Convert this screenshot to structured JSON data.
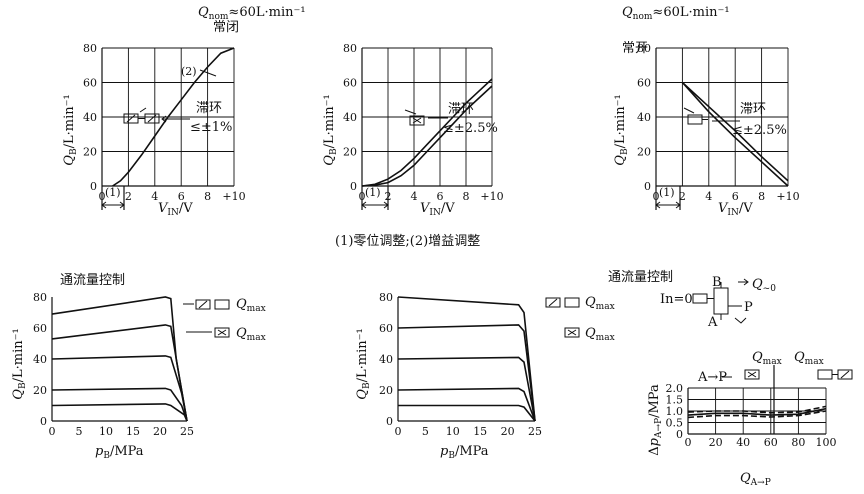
{
  "headers": {
    "qnom_left": "Q",
    "qnom_left_sub": "nom",
    "qnom_left_rest": "≈60L·min⁻¹",
    "normally_closed": "常闭",
    "qnom_right": "Q",
    "qnom_right_sub": "nom",
    "qnom_right_rest": "≈60L·min⁻¹",
    "normally_open": "常开",
    "caption": "(1)零位调整;(2)增益调整",
    "flow_control_left": "通流量控制",
    "flow_control_right": "通流量控制"
  },
  "labels": {
    "hyst_1": "滞环",
    "hyst_1_val": "≤±1%",
    "hyst_2": "滞环",
    "hyst_2_val": "≤±2.5%",
    "hyst_3": "滞环",
    "hyst_3_val": "≤±2.5%",
    "gain_mark": "(2)",
    "zero_mark_1": "(1)",
    "zero_mark_2": "(1)",
    "zero_mark_3": "(1)",
    "qmax_1": "Q",
    "qmax_1_sub": "max",
    "qmax_2": "Q",
    "qmax_2_sub": "max",
    "qmax_3": "Q",
    "qmax_3_sub": "max",
    "qmax_4": "Q",
    "qmax_4_sub": "max",
    "qmax_5": "Q",
    "qmax_5_sub": "max",
    "qmax_6": "Q",
    "qmax_6_sub": "max",
    "a_to_p": "A→P",
    "port_b": "B",
    "port_a": "A",
    "port_p": "P",
    "in_zero": "In=0",
    "q_zero": "Q",
    "q_zero_sub": "~0"
  },
  "chart_data": [
    {
      "type": "line",
      "xlabel": "V_IN/V",
      "ylabel": "Q_B/L·min⁻¹",
      "x_ticks": [
        "0",
        "2",
        "4",
        "6",
        "8",
        "+10"
      ],
      "y_ticks": [
        "0",
        "20",
        "40",
        "60",
        "80"
      ],
      "xlim": [
        0,
        10
      ],
      "ylim": [
        0,
        80
      ],
      "grid": true,
      "series": [
        {
          "values": [
            [
              0.8,
              0
            ],
            [
              1.4,
              3
            ],
            [
              2,
              8
            ],
            [
              3,
              18
            ],
            [
              4,
              29
            ],
            [
              5,
              40
            ],
            [
              6,
              50
            ],
            [
              7,
              60
            ],
            [
              8,
              69
            ],
            [
              9,
              77
            ],
            [
              10,
              80
            ]
          ]
        }
      ]
    },
    {
      "type": "line",
      "xlabel": "V_IN/V",
      "ylabel": "Q_B/L·min⁻¹",
      "x_ticks": [
        "0",
        "2",
        "4",
        "6",
        "8",
        "+10"
      ],
      "y_ticks": [
        "0",
        "20",
        "40",
        "60",
        "80"
      ],
      "xlim": [
        0,
        10
      ],
      "ylim": [
        0,
        80
      ],
      "grid": true,
      "series": [
        {
          "values": [
            [
              0,
              0
            ],
            [
              1,
              1
            ],
            [
              2,
              4
            ],
            [
              3,
              9
            ],
            [
              4,
              16
            ],
            [
              5,
              24
            ],
            [
              6,
              32
            ],
            [
              7,
              40
            ],
            [
              8,
              48
            ],
            [
              9,
              55
            ],
            [
              10,
              62
            ]
          ]
        },
        {
          "values": [
            [
              0,
              0
            ],
            [
              1,
              0.5
            ],
            [
              2,
              2
            ],
            [
              3,
              6
            ],
            [
              4,
              12
            ],
            [
              5,
              20
            ],
            [
              6,
              28
            ],
            [
              7,
              36
            ],
            [
              8,
              44
            ],
            [
              9,
              51
            ],
            [
              10,
              58
            ]
          ]
        }
      ]
    },
    {
      "type": "line",
      "xlabel": "V_IN/V",
      "ylabel": "Q_B/L·min⁻¹",
      "x_ticks": [
        "0",
        "2",
        "4",
        "6",
        "8",
        "+10"
      ],
      "y_ticks": [
        "0",
        "20",
        "40",
        "60",
        "80"
      ],
      "xlim": [
        0,
        10
      ],
      "ylim": [
        0,
        80
      ],
      "grid": true,
      "series": [
        {
          "values": [
            [
              2,
              60
            ],
            [
              4,
              46
            ],
            [
              6,
              32
            ],
            [
              8,
              17
            ],
            [
              10,
              3
            ]
          ]
        },
        {
          "values": [
            [
              2,
              60
            ],
            [
              4,
              43
            ],
            [
              6,
              28
            ],
            [
              8,
              14
            ],
            [
              10,
              0
            ]
          ]
        }
      ]
    },
    {
      "type": "line",
      "xlabel": "p_B/MPa",
      "ylabel": "Q_B/L·min⁻¹",
      "x_ticks": [
        "0",
        "5",
        "10",
        "15",
        "20",
        "25"
      ],
      "y_ticks": [
        "0",
        "20",
        "40",
        "60",
        "80"
      ],
      "xlim": [
        0,
        25
      ],
      "ylim": [
        0,
        80
      ],
      "grid": false,
      "series": [
        {
          "values": [
            [
              0,
              69
            ],
            [
              21,
              80
            ],
            [
              22,
              79
            ],
            [
              23,
              40
            ],
            [
              25,
              0
            ]
          ]
        },
        {
          "values": [
            [
              0,
              53
            ],
            [
              21,
              62
            ],
            [
              22,
              61
            ],
            [
              23.5,
              30
            ],
            [
              25,
              0
            ]
          ]
        },
        {
          "values": [
            [
              0,
              40
            ],
            [
              21,
              42
            ],
            [
              22,
              41
            ],
            [
              24,
              18
            ],
            [
              25,
              0
            ]
          ]
        },
        {
          "values": [
            [
              0,
              20
            ],
            [
              21,
              21
            ],
            [
              22,
              20
            ],
            [
              24,
              10
            ],
            [
              25,
              0
            ]
          ]
        },
        {
          "values": [
            [
              0,
              10
            ],
            [
              21,
              11
            ],
            [
              22,
              10
            ],
            [
              24.5,
              4
            ],
            [
              25,
              0
            ]
          ]
        }
      ]
    },
    {
      "type": "line",
      "xlabel": "p_B/MPa",
      "ylabel": "Q_B/L·min⁻¹",
      "x_ticks": [
        "0",
        "5",
        "10",
        "15",
        "20",
        "25"
      ],
      "y_ticks": [
        "0",
        "20",
        "40",
        "60",
        "80"
      ],
      "xlim": [
        0,
        25
      ],
      "ylim": [
        0,
        80
      ],
      "grid": false,
      "series": [
        {
          "values": [
            [
              0,
              80
            ],
            [
              22,
              75
            ],
            [
              23,
              70
            ],
            [
              25,
              0
            ]
          ]
        },
        {
          "values": [
            [
              0,
              60
            ],
            [
              22,
              62
            ],
            [
              23,
              58
            ],
            [
              25,
              0
            ]
          ]
        },
        {
          "values": [
            [
              0,
              40
            ],
            [
              22,
              41
            ],
            [
              23,
              38
            ],
            [
              25,
              0
            ]
          ]
        },
        {
          "values": [
            [
              0,
              20
            ],
            [
              22,
              21
            ],
            [
              23,
              19
            ],
            [
              25,
              0
            ]
          ]
        },
        {
          "values": [
            [
              0,
              10
            ],
            [
              22,
              10
            ],
            [
              23,
              9
            ],
            [
              25,
              0
            ]
          ]
        }
      ]
    },
    {
      "type": "line",
      "xlabel": "Q_A→P",
      "ylabel": "Δp_A→P/MPa",
      "x_ticks": [
        "0",
        "20",
        "40",
        "60",
        "80",
        "100"
      ],
      "y_ticks": [
        "0",
        "0.5",
        "1.0",
        "1.5",
        "2.0"
      ],
      "xlim": [
        0,
        100
      ],
      "ylim": [
        0,
        2
      ],
      "grid": true,
      "series": [
        {
          "values": [
            [
              0,
              0.95
            ],
            [
              20,
              1.0
            ],
            [
              40,
              1.0
            ],
            [
              60,
              0.92
            ],
            [
              80,
              0.95
            ],
            [
              100,
              1.2
            ]
          ]
        },
        {
          "values": [
            [
              0,
              0.82
            ],
            [
              20,
              0.9
            ],
            [
              40,
              0.9
            ],
            [
              60,
              0.82
            ],
            [
              80,
              0.86
            ],
            [
              100,
              1.1
            ]
          ]
        },
        {
          "values": [
            [
              0,
              0.72
            ],
            [
              20,
              0.8
            ],
            [
              40,
              0.8
            ],
            [
              60,
              0.74
            ],
            [
              80,
              0.8
            ],
            [
              100,
              1.0
            ]
          ]
        }
      ]
    }
  ]
}
